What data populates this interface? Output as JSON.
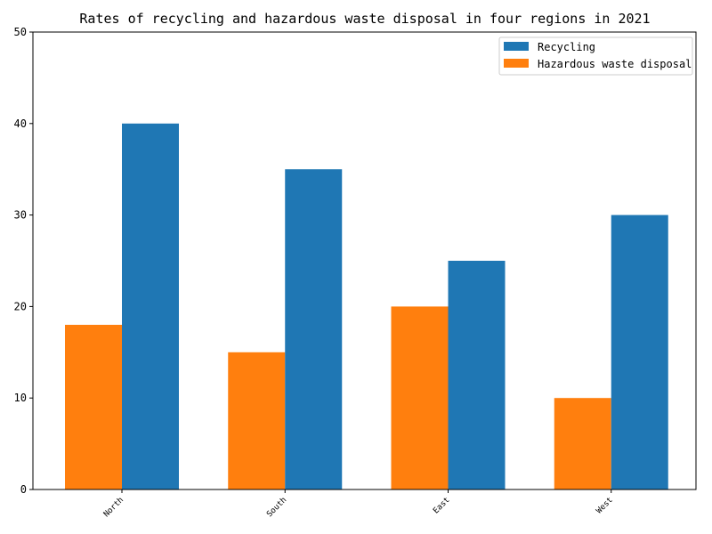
{
  "chart_data": {
    "type": "bar",
    "title": "Rates of recycling and hazardous waste disposal in four regions in 2021",
    "categories": [
      "North",
      "South",
      "East",
      "West"
    ],
    "series": [
      {
        "name": "Hazardous waste disposal",
        "values": [
          18,
          15,
          20,
          10
        ],
        "color": "#ff7f0e"
      },
      {
        "name": "Recycling",
        "values": [
          40,
          35,
          25,
          30
        ],
        "color": "#1f77b4"
      }
    ],
    "legend_order": [
      "Recycling",
      "Hazardous waste disposal"
    ],
    "legend_position": "top-right",
    "xlabel": "",
    "ylabel": "",
    "ylim": [
      0,
      50
    ],
    "yticks": [
      0,
      10,
      20,
      30,
      40,
      50
    ],
    "grid": false
  }
}
